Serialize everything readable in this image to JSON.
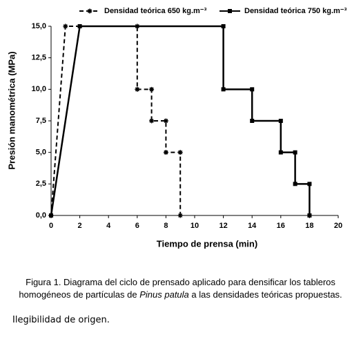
{
  "chart_data": {
    "type": "line",
    "x_label": "Tiempo de prensa (min)",
    "y_label": "Presión manométrica (MPa)",
    "xlim": [
      0,
      20
    ],
    "xticks": [
      0,
      2,
      4,
      6,
      8,
      10,
      12,
      14,
      16,
      18,
      20
    ],
    "ylim": [
      0,
      15
    ],
    "yticks": [
      {
        "value": 0,
        "label": "0,0"
      },
      {
        "value": 2.5,
        "label": "2,5"
      },
      {
        "value": 5,
        "label": "5,0"
      },
      {
        "value": 7.5,
        "label": "7,5"
      },
      {
        "value": 10,
        "label": "10,0"
      },
      {
        "value": 12.5,
        "label": "12,5"
      },
      {
        "value": 15,
        "label": "15,0"
      }
    ],
    "grid": false,
    "legend": "top",
    "series": [
      {
        "name": "Densidad teórica 650 kg.m⁻³",
        "color": "#000000",
        "line_style": "dashed",
        "marker": "star",
        "x": [
          0,
          1,
          6,
          6,
          7,
          7,
          8,
          8,
          9,
          9
        ],
        "values": [
          0,
          15,
          15,
          10,
          10,
          7.5,
          7.5,
          5,
          5,
          0
        ]
      },
      {
        "name": "Densidad teórica 750 kg.m⁻³",
        "color": "#000000",
        "line_style": "solid",
        "marker": "square",
        "x": [
          0,
          2,
          12,
          12,
          14,
          14,
          16,
          16,
          17,
          17,
          18,
          18
        ],
        "values": [
          0,
          15,
          15,
          10,
          10,
          7.5,
          7.5,
          5,
          5,
          2.5,
          2.5,
          0
        ]
      }
    ]
  },
  "caption": {
    "line1": "Figura 1. Diagrama del ciclo de prensado aplicado para densificar los tableros",
    "line2_start": "homogéneos de partículas de",
    "line2_italic": "Pinus patula",
    "line2_end": "a las densidades teóricas propuestas."
  },
  "note": "Ilegibilidad de origen."
}
